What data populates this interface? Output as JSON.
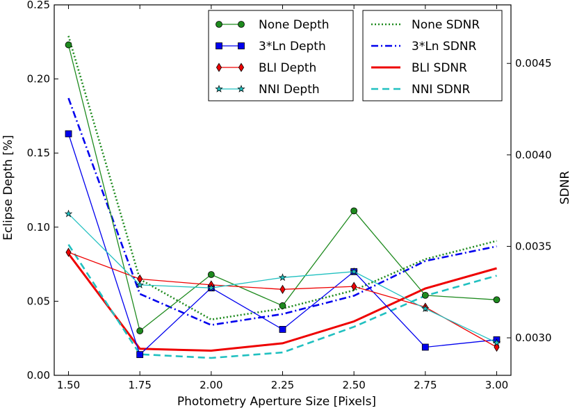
{
  "chart_data": {
    "type": "line",
    "title": "",
    "xlabel": "Photometry Aperture Size [Pixels]",
    "ylabel": "Eclipse Depth [%]",
    "y2label": "SDNR",
    "xlim": [
      1.45,
      3.05
    ],
    "ylim": [
      0.0,
      0.25
    ],
    "y2lim": [
      0.002795,
      0.00482
    ],
    "x": [
      1.5,
      1.75,
      2.0,
      2.25,
      2.5,
      2.75,
      3.0
    ],
    "x_tick_labels": [
      "1.50",
      "1.75",
      "2.00",
      "2.25",
      "2.50",
      "2.75",
      "3.00"
    ],
    "y_ticks": [
      0.0,
      0.05,
      0.1,
      0.15,
      0.2,
      0.25
    ],
    "y_tick_labels": [
      "0.00",
      "0.05",
      "0.10",
      "0.15",
      "0.20",
      "0.25"
    ],
    "y2_ticks": [
      0.003,
      0.0035,
      0.004,
      0.0045
    ],
    "y2_tick_labels": [
      "0.0030",
      "0.0035",
      "0.0040",
      "0.0045"
    ],
    "depth_series": [
      {
        "name": "None Depth",
        "color": "#1e8a1e",
        "marker": "circle",
        "values": [
          0.223,
          0.03,
          0.068,
          0.047,
          0.111,
          0.054,
          0.051
        ]
      },
      {
        "name": "3*Ln Depth",
        "color": "#0000ee",
        "marker": "square",
        "values": [
          0.163,
          0.014,
          0.059,
          0.031,
          0.07,
          0.019,
          0.024
        ]
      },
      {
        "name": "BLI Depth",
        "color": "#ee0000",
        "marker": "diamond",
        "values": [
          0.083,
          0.065,
          0.061,
          0.058,
          0.06,
          0.046,
          0.019
        ]
      },
      {
        "name": "NNI Depth",
        "color": "#20c0c0",
        "marker": "star",
        "values": [
          0.109,
          0.061,
          0.059,
          0.066,
          0.07,
          0.045,
          0.022
        ]
      }
    ],
    "sdnr_series": [
      {
        "name": "None SDNR",
        "color": "#1e8a1e",
        "dash": "dotted",
        "values": [
          0.00465,
          0.00332,
          0.0031,
          0.00316,
          0.00326,
          0.00343,
          0.00353
        ]
      },
      {
        "name": "3*Ln SDNR",
        "color": "#0000ee",
        "dash": "dashdot",
        "values": [
          0.00431,
          0.00324,
          0.00307,
          0.00313,
          0.00323,
          0.00342,
          0.0035
        ]
      },
      {
        "name": "BLI SDNR",
        "color": "#ee0000",
        "dash": "solid",
        "values": [
          0.00346,
          0.00294,
          0.00293,
          0.00297,
          0.00309,
          0.00327,
          0.00338
        ]
      },
      {
        "name": "NNI SDNR",
        "color": "#20c0c0",
        "dash": "dashed",
        "values": [
          0.00351,
          0.00291,
          0.00289,
          0.00292,
          0.00306,
          0.00323,
          0.00334
        ]
      }
    ]
  }
}
